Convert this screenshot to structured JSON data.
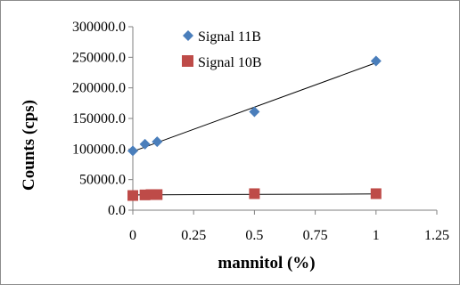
{
  "chart_data": {
    "type": "scatter",
    "xlabel": "mannitol (%)",
    "ylabel": "Counts (cps)",
    "xlim": [
      0,
      1.25
    ],
    "ylim": [
      0,
      300000
    ],
    "x_ticks": [
      "0",
      "0.25",
      "0.5",
      "0.75",
      "1",
      "1.25"
    ],
    "y_ticks": [
      "0.0",
      "50000.0",
      "100000.0",
      "150000.0",
      "200000.0",
      "250000.0",
      "300000.0"
    ],
    "x_tick_values": [
      0,
      0.25,
      0.5,
      0.75,
      1,
      1.25
    ],
    "y_tick_values": [
      0,
      50000,
      100000,
      150000,
      200000,
      250000,
      300000
    ],
    "grid": false,
    "legend_position": "top-center",
    "series": [
      {
        "name": "Signal 11B",
        "marker": "diamond",
        "color": "#4a7ebb",
        "x": [
          0,
          0.05,
          0.1,
          0.5,
          1
        ],
        "y": [
          97000,
          108000,
          112000,
          161000,
          244000
        ],
        "trendline": {
          "x": [
            0,
            1
          ],
          "y": [
            96000,
            241000
          ]
        }
      },
      {
        "name": "Signal 10B",
        "marker": "square",
        "color": "#be4b48",
        "x": [
          0,
          0.05,
          0.075,
          0.1,
          0.5,
          1
        ],
        "y": [
          24000,
          25000,
          25500,
          25500,
          27000,
          27000
        ],
        "trendline": {
          "x": [
            0,
            1
          ],
          "y": [
            25000,
            26500
          ]
        }
      }
    ]
  }
}
